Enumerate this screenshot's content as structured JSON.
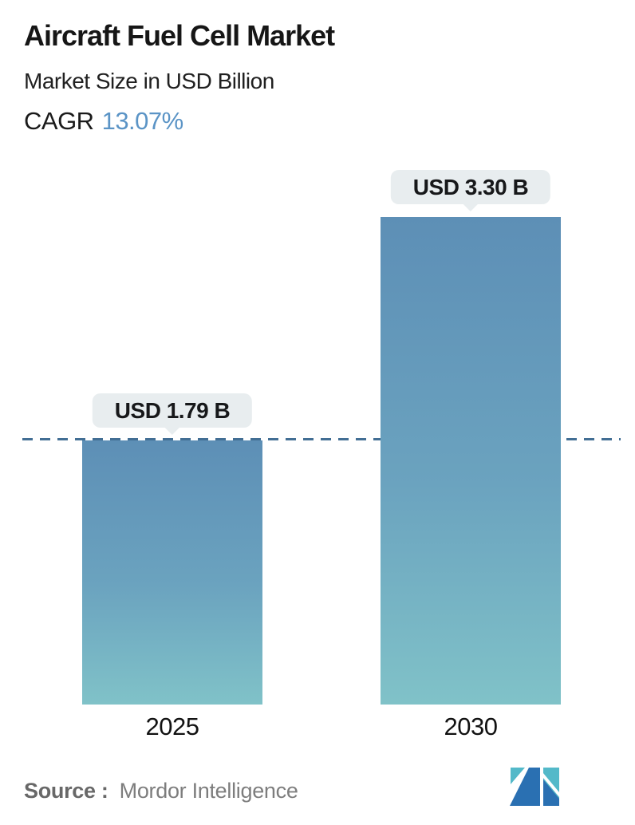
{
  "header": {
    "title": "Aircraft Fuel Cell Market",
    "subtitle": "Market Size in USD Billion",
    "cagr_label": "CAGR",
    "cagr_value": "13.07%"
  },
  "chart_data": {
    "type": "bar",
    "title": "Aircraft Fuel Cell Market",
    "subtitle": "Market Size in USD Billion",
    "unit": "USD Billion",
    "cagr": "13.07%",
    "categories": [
      "2025",
      "2030"
    ],
    "values": [
      1.79,
      3.3
    ],
    "value_labels": [
      "USD 1.79 B",
      "USD 3.30 B"
    ],
    "ylim": [
      0,
      3.3
    ],
    "grid": "off",
    "legend": "none",
    "annotations": [
      "horizontal dashed reference line at 2025 value (USD 1.79 B)"
    ]
  },
  "footer": {
    "source_label": "Source :",
    "source_value": "Mordor Intelligence",
    "logo_name": "mordor-intelligence-logo"
  },
  "colors": {
    "bar_gradient_top": "#5d8fb6",
    "bar_gradient_mid": "#6ba3bf",
    "bar_gradient_bottom": "#80c2c8",
    "dashed_line": "#426e94",
    "cagr_color": "#5b94c6",
    "tooltip_bg": "#e8edef",
    "title_color": "#161616",
    "source_label_color": "#686868",
    "source_value_color": "#7d7d7d",
    "logo_dark_blue": "#2a70b2",
    "logo_teal": "#53b9c9"
  }
}
